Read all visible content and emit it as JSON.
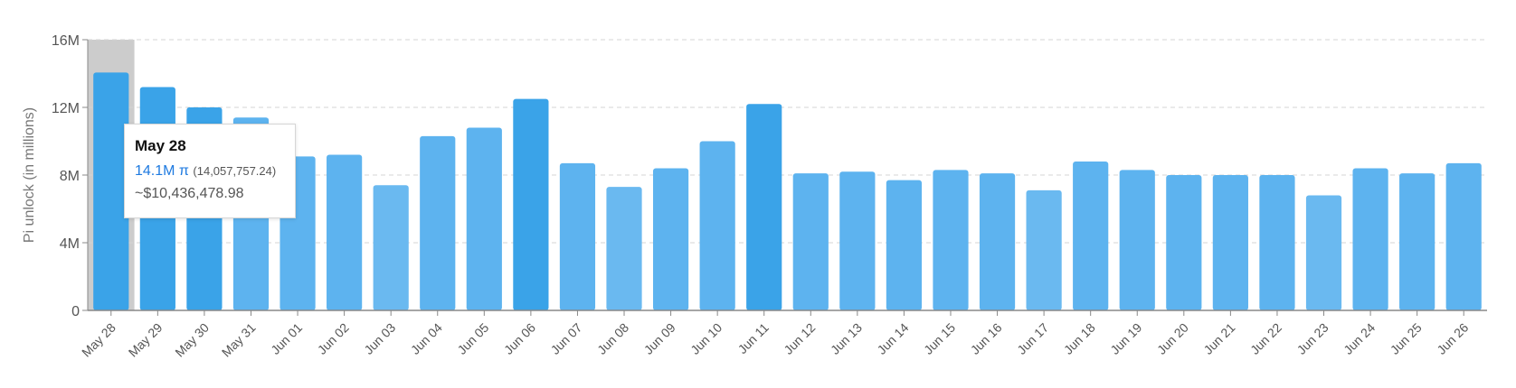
{
  "chart_data": {
    "type": "bar",
    "ylabel": "Pi unlock (in millions)",
    "ylim": [
      0,
      16
    ],
    "yticks": [
      {
        "value": 0,
        "label": "0"
      },
      {
        "value": 4,
        "label": "4M"
      },
      {
        "value": 8,
        "label": "8M"
      },
      {
        "value": 12,
        "label": "12M"
      },
      {
        "value": 16,
        "label": "16M"
      }
    ],
    "grid": true,
    "categories": [
      "May 28",
      "May 29",
      "May 30",
      "May 31",
      "Jun 01",
      "Jun 02",
      "Jun 03",
      "Jun 04",
      "Jun 05",
      "Jun 06",
      "Jun 07",
      "Jun 08",
      "Jun 09",
      "Jun 10",
      "Jun 11",
      "Jun 12",
      "Jun 13",
      "Jun 14",
      "Jun 15",
      "Jun 16",
      "Jun 17",
      "Jun 18",
      "Jun 19",
      "Jun 20",
      "Jun 21",
      "Jun 22",
      "Jun 23",
      "Jun 24",
      "Jun 25",
      "Jun 26"
    ],
    "values": [
      14.06,
      13.2,
      12.0,
      11.4,
      9.1,
      9.2,
      7.4,
      10.3,
      10.8,
      12.5,
      8.7,
      7.3,
      8.4,
      10.0,
      12.2,
      8.1,
      8.2,
      7.7,
      8.3,
      8.1,
      7.1,
      8.8,
      8.3,
      8.0,
      8.0,
      8.0,
      6.8,
      8.4,
      8.1,
      8.7
    ],
    "highlight_index": 0,
    "colors": {
      "bar_strong": "#3aa3e8",
      "bar_mid": "#5db3ef",
      "bar_light": "#6ab9f0",
      "highlight_band": "#cccccc",
      "grid": "#d4d4d4",
      "axis": "#888888",
      "tick_text": "#555555"
    }
  },
  "tooltip": {
    "date": "May 28",
    "value_short": "14.1M π",
    "value_exact": "(14,057,757.24)",
    "usd": "~$10,436,478.98"
  }
}
